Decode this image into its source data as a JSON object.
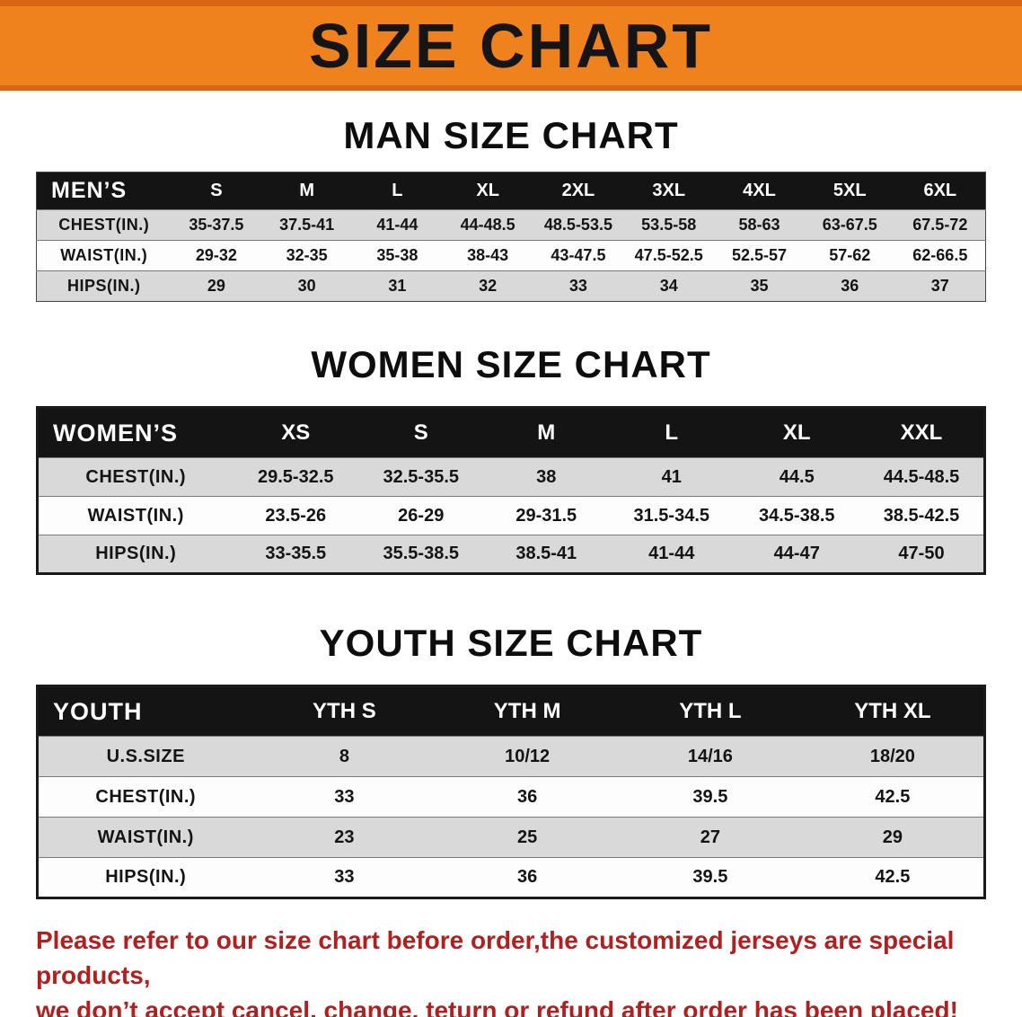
{
  "banner": {
    "title": "SIZE CHART",
    "bg_color": "#F0821E",
    "text_color": "#151515"
  },
  "sections": {
    "men": {
      "heading": "MAN SIZE CHART",
      "table": {
        "header": [
          "MEN’S",
          "S",
          "M",
          "L",
          "XL",
          "2XL",
          "3XL",
          "4XL",
          "5XL",
          "6XL"
        ],
        "rows": [
          {
            "label": "CHEST(IN.)",
            "values": [
              "35-37.5",
              "37.5-41",
              "41-44",
              "44-48.5",
              "48.5-53.5",
              "53.5-58",
              "58-63",
              "63-67.5",
              "67.5-72"
            ]
          },
          {
            "label": "WAIST(IN.)",
            "values": [
              "29-32",
              "32-35",
              "35-38",
              "38-43",
              "43-47.5",
              "47.5-52.5",
              "52.5-57",
              "57-62",
              "62-66.5"
            ]
          },
          {
            "label": "HIPS(IN.)",
            "values": [
              "29",
              "30",
              "31",
              "32",
              "33",
              "34",
              "35",
              "36",
              "37"
            ]
          }
        ]
      }
    },
    "women": {
      "heading": "WOMEN SIZE CHART",
      "table": {
        "header": [
          "WOMEN’S",
          "XS",
          "S",
          "M",
          "L",
          "XL",
          "XXL"
        ],
        "rows": [
          {
            "label": "CHEST(IN.)",
            "values": [
              "29.5-32.5",
              "32.5-35.5",
              "38",
              "41",
              "44.5",
              "44.5-48.5"
            ]
          },
          {
            "label": "WAIST(IN.)",
            "values": [
              "23.5-26",
              "26-29",
              "29-31.5",
              "31.5-34.5",
              "34.5-38.5",
              "38.5-42.5"
            ]
          },
          {
            "label": "HIPS(IN.)",
            "values": [
              "33-35.5",
              "35.5-38.5",
              "38.5-41",
              "41-44",
              "44-47",
              "47-50"
            ]
          }
        ]
      }
    },
    "youth": {
      "heading": "YOUTH SIZE CHART",
      "table": {
        "header": [
          "YOUTH",
          "YTH S",
          "YTH M",
          "YTH L",
          "YTH XL"
        ],
        "rows": [
          {
            "label": "U.S.SIZE",
            "values": [
              "8",
              "10/12",
              "14/16",
              "18/20"
            ]
          },
          {
            "label": "CHEST(IN.)",
            "values": [
              "33",
              "36",
              "39.5",
              "42.5"
            ]
          },
          {
            "label": "WAIST(IN.)",
            "values": [
              "23",
              "25",
              "27",
              "29"
            ]
          },
          {
            "label": "HIPS(IN.)",
            "values": [
              "33",
              "36",
              "39.5",
              "42.5"
            ]
          }
        ]
      }
    }
  },
  "disclaimer": {
    "line1": "Please refer to our size chart before order,the customized jerseys are special products,",
    "line2": "we don’t accept cancel, change, teturn or refund after order has been placed!",
    "color": "#B02020"
  }
}
